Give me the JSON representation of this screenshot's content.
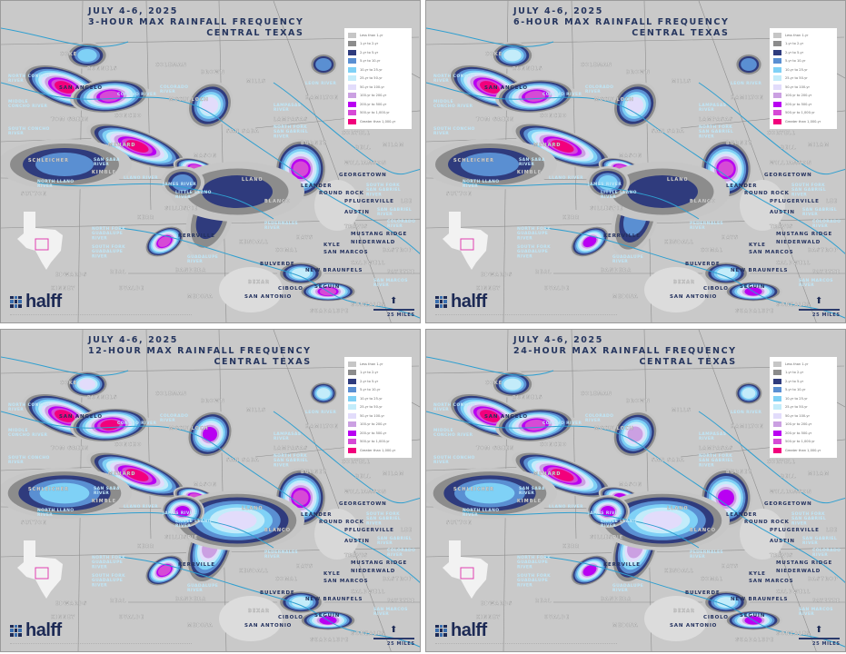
{
  "legend": {
    "items": [
      {
        "label": "Less than 1-yr",
        "color": "#c6c6c6"
      },
      {
        "label": "1-yr to 2-yr",
        "color": "#8c8c8c"
      },
      {
        "label": "2-yr to 5-yr",
        "color": "#2f3b7d"
      },
      {
        "label": "5-yr to 10-yr",
        "color": "#5a8fd2"
      },
      {
        "label": "10-yr to 25-yr",
        "color": "#7fd1f6"
      },
      {
        "label": "25-yr to 50-yr",
        "color": "#c3ecfa"
      },
      {
        "label": "50-yr to 100-yr",
        "color": "#e2dcfb"
      },
      {
        "label": "100-yr to 200-yr",
        "color": "#cba0e2"
      },
      {
        "label": "200-yr to 500-yr",
        "color": "#b900f2"
      },
      {
        "label": "500-yr to 1,000-yr",
        "color": "#d64ad6"
      },
      {
        "label": "Greater than 1,000-yr",
        "color": "#f2007c"
      }
    ]
  },
  "panels": [
    {
      "title": [
        "JULY 4-6, 2025",
        "3-HOUR MAX RAINFALL FREQUENCY",
        "CENTRAL TEXAS"
      ]
    },
    {
      "title": [
        "JULY 4-6, 2025",
        "6-HOUR MAX RAINFALL FREQUENCY",
        "CENTRAL TEXAS"
      ]
    },
    {
      "title": [
        "JULY 4-6, 2025",
        "12-HOUR MAX RAINFALL FREQUENCY",
        "CENTRAL TEXAS"
      ]
    },
    {
      "title": [
        "JULY 4-6, 2025",
        "24-HOUR MAX RAINFALL FREQUENCY",
        "CENTRAL TEXAS"
      ]
    }
  ],
  "logo": "halff",
  "scale_label": "25 MILES",
  "north_arrow": "arrow-up-icon",
  "colors": {
    "land": "#c9c9c9",
    "river": "#2f9fd0",
    "city": "#23315e",
    "county": "#e9e9e9",
    "river_label": "#bfe6f7",
    "inset_box": "#e040b0"
  },
  "counties": [
    "COKE",
    "RUNNELS",
    "COLEMAN",
    "BROWN",
    "MCCULLOCH",
    "TOM GREEN",
    "CONCHO",
    "SCHLEICHER",
    "SUTTON",
    "MENARD",
    "MASON",
    "KIMBLE",
    "MILLS",
    "HAMILTON",
    "CORYELL",
    "LAMPASAS",
    "SAN SABA",
    "BELL",
    "MILAM",
    "LLANO",
    "BURNET",
    "WILLIAMSON",
    "BLANCO",
    "GILLESPIE",
    "KERR",
    "TRAVIS",
    "HAYS",
    "LEE",
    "BASTROP",
    "KENDALL",
    "COMAL",
    "CALDWELL",
    "EDWARDS",
    "REAL",
    "BANDERA",
    "BEXAR",
    "KINNEY",
    "UVALDE",
    "MEDINA",
    "GUADALUPE",
    "GONZALES",
    "FAYETTE"
  ],
  "cities": [
    "SAN ANGELO",
    "GEORGETOWN",
    "LEANDER",
    "ROUND ROCK",
    "PFLUGERVILLE",
    "AUSTIN",
    "MUSTANG RIDGE",
    "NIEDERWALD",
    "KYLE",
    "SAN MARCOS",
    "KERRVILLE",
    "BULVERDE",
    "NEW BRAUNFELS",
    "CIBOLO",
    "SEGUIN",
    "SAN ANTONIO"
  ],
  "rivers": [
    "NORTH CONCHO RIVER",
    "MIDDLE CONCHO RIVER",
    "SOUTH CONCHO RIVER",
    "CONCHO RIVER",
    "COLORADO RIVER",
    "SAN SABA RIVER",
    "NORTH LLANO RIVER",
    "LLANO RIVER",
    "JAMES RIVER",
    "LITTLE LLANO RIVER",
    "LEON RIVER",
    "LAMPASAS RIVER",
    "NORTH FORK SAN GABRIEL RIVER",
    "SOUTH FORK SAN GABRIEL RIVER",
    "SAN GABRIEL RIVER",
    "COLORADO RIVER",
    "PEDERNALES RIVER",
    "NORTH FORK GUADALUPE RIVER",
    "SOUTH FORK GUADALUPE RIVER",
    "GUADALUPE RIVER",
    "SAN MARCOS RIVER"
  ]
}
